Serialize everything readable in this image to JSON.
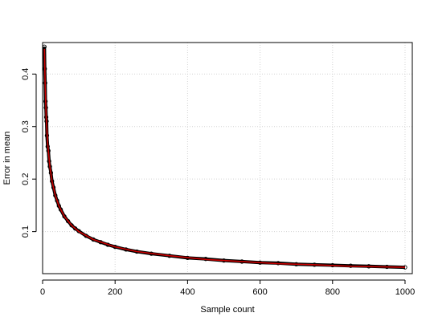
{
  "chart_data": {
    "type": "scatter",
    "title": "",
    "xlabel": "Sample count",
    "ylabel": "Error in mean",
    "xlim": [
      0,
      1020
    ],
    "ylim": [
      0.02,
      0.46
    ],
    "x_ticks": [
      0,
      200,
      400,
      600,
      800,
      1000
    ],
    "y_ticks": [
      0.1,
      0.2,
      0.3,
      0.4
    ],
    "x_tick_labels": [
      "0",
      "200",
      "400",
      "600",
      "800",
      "1000"
    ],
    "y_tick_labels": [
      "0.1",
      "0.2",
      "0.3",
      "0.4"
    ],
    "grid": true,
    "legend": "none",
    "series": [
      {
        "kind": "points",
        "color": "#000000",
        "x": [
          5,
          6,
          7,
          8,
          9,
          10,
          11,
          12,
          14,
          16,
          18,
          20,
          23,
          26,
          30,
          35,
          40,
          45,
          50,
          60,
          70,
          80,
          90,
          100,
          120,
          140,
          160,
          180,
          200,
          230,
          260,
          300,
          350,
          400,
          450,
          500,
          550,
          600,
          650,
          700,
          750,
          800,
          850,
          900,
          950,
          1000
        ],
        "y": [
          0.452,
          0.41,
          0.383,
          0.348,
          0.336,
          0.318,
          0.31,
          0.283,
          0.262,
          0.254,
          0.234,
          0.224,
          0.212,
          0.196,
          0.184,
          0.169,
          0.159,
          0.149,
          0.142,
          0.129,
          0.12,
          0.112,
          0.106,
          0.101,
          0.092,
          0.085,
          0.08,
          0.075,
          0.071,
          0.066,
          0.062,
          0.058,
          0.054,
          0.05,
          0.048,
          0.045,
          0.043,
          0.041,
          0.04,
          0.038,
          0.037,
          0.036,
          0.035,
          0.034,
          0.033,
          0.032
        ]
      },
      {
        "kind": "line",
        "color": "#cc0000",
        "x": [
          5,
          7,
          10,
          14,
          20,
          26,
          35,
          45,
          60,
          80,
          100,
          140,
          200,
          260,
          350,
          450,
          550,
          650,
          750,
          850,
          1000
        ],
        "y": [
          0.448,
          0.379,
          0.317,
          0.268,
          0.224,
          0.196,
          0.169,
          0.149,
          0.129,
          0.112,
          0.1,
          0.085,
          0.071,
          0.062,
          0.054,
          0.047,
          0.043,
          0.039,
          0.037,
          0.034,
          0.032
        ]
      }
    ]
  }
}
